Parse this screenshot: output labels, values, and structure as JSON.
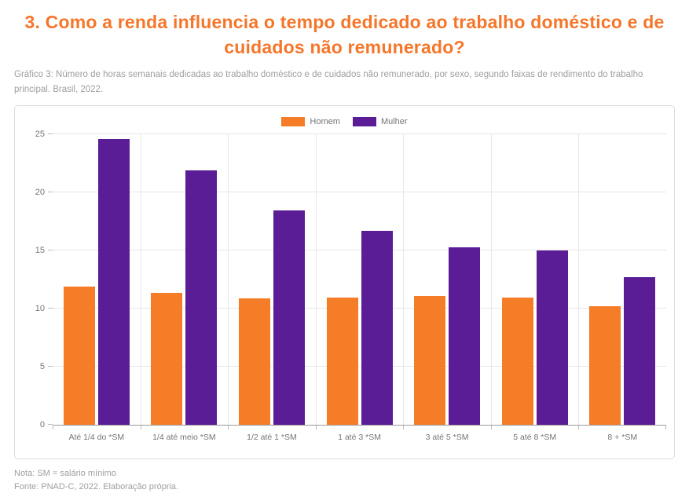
{
  "header": {
    "title": "3. Como a renda influencia o tempo dedicado ao trabalho doméstico e de cuidados não remunerado?",
    "caption": "Gráfico 3: Número de horas semanais dedicadas ao trabalho doméstico e de cuidados não remunerado, por sexo, segundo faixas de rendimento do trabalho principal. Brasil, 2022."
  },
  "colors": {
    "title": "#f5762a",
    "homem": "#f57d28",
    "mulher": "#5b1d96",
    "grid": "#e7e7e7",
    "axis_line": "#9a9a9a",
    "axis_text": "#757575",
    "caption_text": "#9e9ea1",
    "card_border": "#dcdcdc"
  },
  "chart_data": {
    "type": "bar",
    "title": "Número de horas semanais dedicadas ao trabalho doméstico e de cuidados não remunerado, por sexo, segundo faixas de rendimento do trabalho principal. Brasil, 2022",
    "categories": [
      "Até 1/4 do *SM",
      "1/4 até meio *SM",
      "1/2 até 1 *SM",
      "1 até 3 *SM",
      "3 até 5 *SM",
      "5 até 8 *SM",
      "8 + *SM"
    ],
    "series": [
      {
        "name": "Homem",
        "color": "#f57d28",
        "values": [
          11.9,
          11.4,
          10.9,
          11.0,
          11.1,
          11.0,
          10.2
        ]
      },
      {
        "name": "Mulher",
        "color": "#5b1d96",
        "values": [
          24.6,
          21.9,
          18.5,
          16.7,
          15.3,
          15.0,
          12.7
        ]
      }
    ],
    "xlabel": "",
    "ylabel": "",
    "ylim": [
      0,
      25
    ],
    "yticks": [
      0,
      5,
      10,
      15,
      20,
      25
    ],
    "grid": true,
    "legend_position": "top-center"
  },
  "footer": {
    "note": "Nota: SM = salário mínimo",
    "source": "Fonte: PNAD-C, 2022. Elaboração própria."
  }
}
